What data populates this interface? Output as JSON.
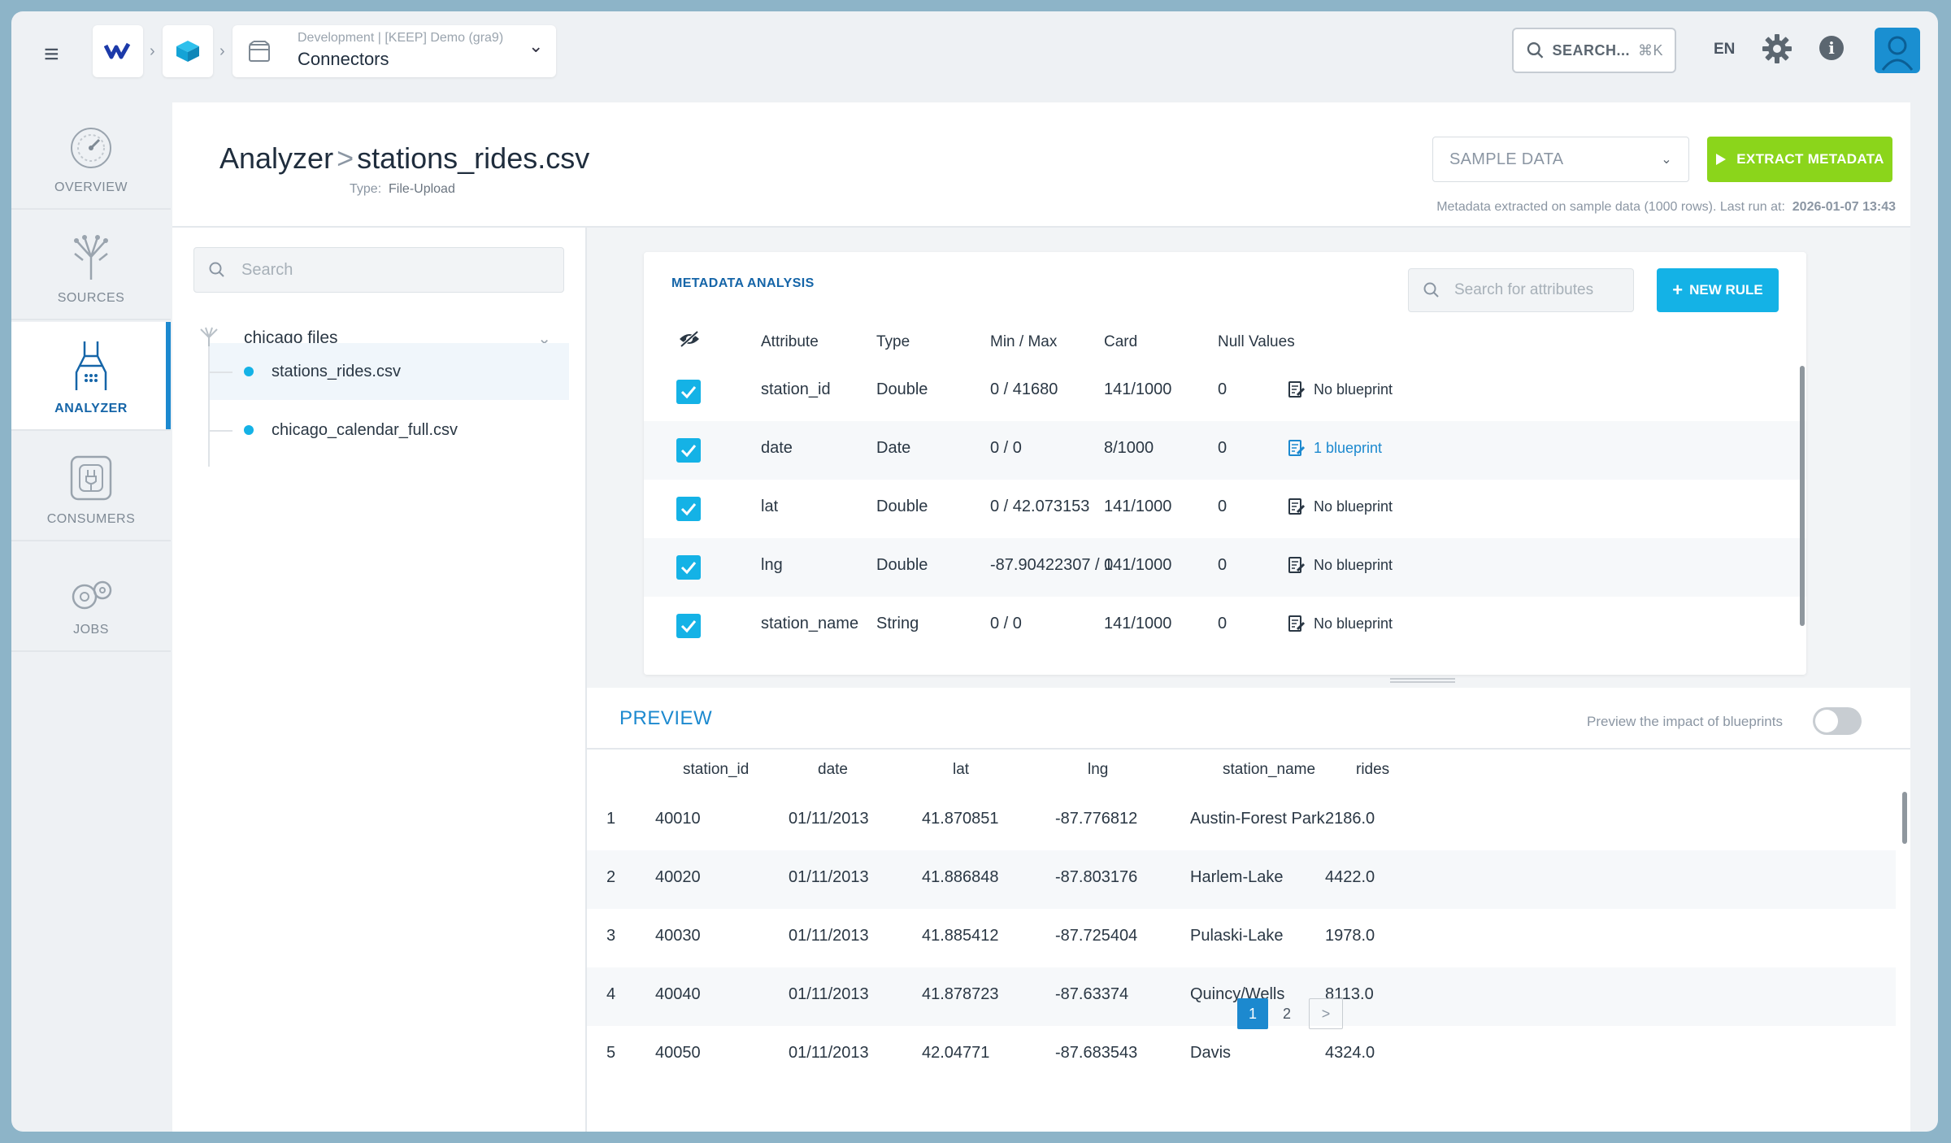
{
  "header": {
    "env": "Development | [KEEP] Demo (gra9)",
    "section": "Connectors",
    "search_label": "SEARCH...",
    "search_shortcut": "⌘K",
    "language": "EN"
  },
  "nav": {
    "items": [
      {
        "label": "OVERVIEW"
      },
      {
        "label": "SOURCES"
      },
      {
        "label": "ANALYZER"
      },
      {
        "label": "CONSUMERS"
      },
      {
        "label": "JOBS"
      }
    ]
  },
  "page": {
    "crumb": "Analyzer",
    "separator": ">",
    "file": "stations_rides.csv",
    "type_label": "Type:",
    "type_value": "File-Upload",
    "sample_select": "SAMPLE DATA",
    "extract_button": "EXTRACT METADATA",
    "last_run_text": "Metadata extracted on sample data (1000 rows).  Last run at:",
    "last_run_time": "2026-01-07 13:43"
  },
  "tree": {
    "search_placeholder": "Search",
    "folder": "chicago files",
    "files": [
      "stations_rides.csv",
      "chicago_calendar_full.csv"
    ]
  },
  "metadata": {
    "title": "METADATA ANALYSIS",
    "search_placeholder": "Search for attributes",
    "new_rule": "NEW RULE",
    "columns": [
      "Attribute",
      "Type",
      "Min / Max",
      "Card",
      "Null Values"
    ],
    "rows": [
      {
        "attribute": "station_id",
        "type": "Double",
        "minmax": "0 / 41680",
        "card": "141/1000",
        "nulls": "0",
        "blueprint": "No blueprint"
      },
      {
        "attribute": "date",
        "type": "Date",
        "minmax": "0 / 0",
        "card": "8/1000",
        "nulls": "0",
        "blueprint": "1 blueprint"
      },
      {
        "attribute": "lat",
        "type": "Double",
        "minmax": "0 / 42.073153",
        "card": "141/1000",
        "nulls": "0",
        "blueprint": "No blueprint"
      },
      {
        "attribute": "lng",
        "type": "Double",
        "minmax": "-87.90422307 / 0",
        "card": "141/1000",
        "nulls": "0",
        "blueprint": "No blueprint"
      },
      {
        "attribute": "station_name",
        "type": "String",
        "minmax": "0 / 0",
        "card": "141/1000",
        "nulls": "0",
        "blueprint": "No blueprint"
      }
    ]
  },
  "preview": {
    "title": "PREVIEW",
    "impact_label": "Preview the impact of blueprints",
    "columns": [
      "station_id",
      "date",
      "lat",
      "lng",
      "station_name",
      "rides"
    ],
    "rows": [
      [
        "1",
        "40010",
        "01/11/2013",
        "41.870851",
        "-87.776812",
        "Austin-Forest Park",
        "2186.0"
      ],
      [
        "2",
        "40020",
        "01/11/2013",
        "41.886848",
        "-87.803176",
        "Harlem-Lake",
        "4422.0"
      ],
      [
        "3",
        "40030",
        "01/11/2013",
        "41.885412",
        "-87.725404",
        "Pulaski-Lake",
        "1978.0"
      ],
      [
        "4",
        "40040",
        "01/11/2013",
        "41.878723",
        "-87.63374",
        "Quincy/Wells",
        "8113.0"
      ],
      [
        "5",
        "40050",
        "01/11/2013",
        "42.04771",
        "-87.683543",
        "Davis",
        "4324.0"
      ]
    ],
    "pages": [
      "1",
      "2"
    ],
    "next": ">"
  }
}
